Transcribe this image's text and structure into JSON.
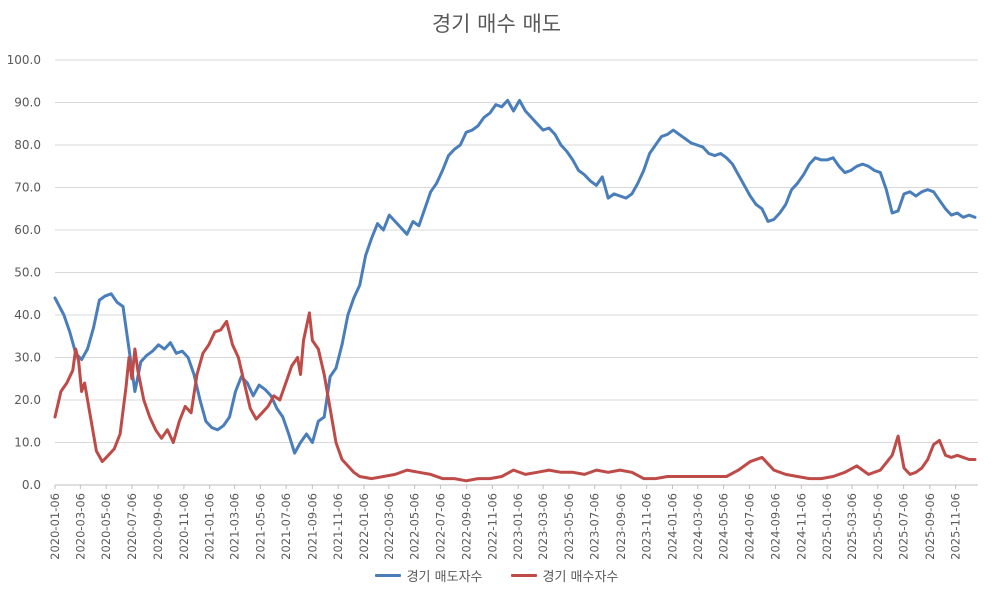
{
  "chart_data": {
    "type": "line",
    "title": "경기 매수 매도",
    "ylim": [
      0,
      100
    ],
    "yticks": [
      "0.0",
      "10.0",
      "20.0",
      "30.0",
      "40.0",
      "50.0",
      "60.0",
      "70.0",
      "80.0",
      "90.0",
      "100.0"
    ],
    "grid": true,
    "legend_position": "bottom",
    "x_start": "2020-01-06",
    "x_end": "2025-12-29",
    "x_ticks": [
      "2020-01-06",
      "2020-03-06",
      "2020-05-06",
      "2020-07-06",
      "2020-09-06",
      "2020-11-06",
      "2021-01-06",
      "2021-03-06",
      "2021-05-06",
      "2021-07-06",
      "2021-09-06",
      "2021-11-06",
      "2022-01-06",
      "2022-03-06",
      "2022-05-06",
      "2022-07-06",
      "2022-09-06",
      "2022-11-06",
      "2023-01-06",
      "2023-03-06",
      "2023-05-06",
      "2023-07-06",
      "2023-09-06",
      "2023-11-06",
      "2024-01-06",
      "2024-03-06",
      "2024-05-06",
      "2024-07-06",
      "2024-09-06",
      "2024-11-06",
      "2025-01-06",
      "2025-03-06",
      "2025-05-06",
      "2025-07-06",
      "2025-09-06",
      "2025-11-06"
    ],
    "series": [
      {
        "name": "경기 매도자수",
        "color": "#4a7ebb",
        "points": [
          [
            "2020-01-06",
            44
          ],
          [
            "2020-01-27",
            40
          ],
          [
            "2020-02-10",
            36
          ],
          [
            "2020-02-24",
            31
          ],
          [
            "2020-03-09",
            29.5
          ],
          [
            "2020-03-23",
            32
          ],
          [
            "2020-04-06",
            37
          ],
          [
            "2020-04-20",
            43.5
          ],
          [
            "2020-05-04",
            44.5
          ],
          [
            "2020-05-18",
            45
          ],
          [
            "2020-06-01",
            43
          ],
          [
            "2020-06-15",
            42
          ],
          [
            "2020-06-29",
            32
          ],
          [
            "2020-07-13",
            22
          ],
          [
            "2020-07-27",
            29
          ],
          [
            "2020-08-10",
            30.5
          ],
          [
            "2020-08-24",
            31.5
          ],
          [
            "2020-09-07",
            33
          ],
          [
            "2020-09-21",
            32
          ],
          [
            "2020-10-05",
            33.5
          ],
          [
            "2020-10-19",
            31
          ],
          [
            "2020-11-02",
            31.5
          ],
          [
            "2020-11-16",
            30
          ],
          [
            "2020-11-30",
            26
          ],
          [
            "2020-12-14",
            20
          ],
          [
            "2020-12-28",
            15
          ],
          [
            "2021-01-11",
            13.5
          ],
          [
            "2021-01-25",
            13
          ],
          [
            "2021-02-08",
            14
          ],
          [
            "2021-02-22",
            16
          ],
          [
            "2021-03-08",
            22
          ],
          [
            "2021-03-22",
            25.5
          ],
          [
            "2021-04-05",
            24
          ],
          [
            "2021-04-19",
            21
          ],
          [
            "2021-05-03",
            23.5
          ],
          [
            "2021-05-17",
            22.5
          ],
          [
            "2021-05-31",
            21
          ],
          [
            "2021-06-14",
            18
          ],
          [
            "2021-06-28",
            16
          ],
          [
            "2021-07-12",
            12
          ],
          [
            "2021-07-26",
            7.5
          ],
          [
            "2021-08-09",
            10
          ],
          [
            "2021-08-23",
            12
          ],
          [
            "2021-09-06",
            10
          ],
          [
            "2021-09-20",
            15
          ],
          [
            "2021-10-04",
            16
          ],
          [
            "2021-10-18",
            25.5
          ],
          [
            "2021-11-01",
            27.5
          ],
          [
            "2021-11-15",
            33
          ],
          [
            "2021-11-29",
            40
          ],
          [
            "2021-12-13",
            44
          ],
          [
            "2021-12-27",
            47
          ],
          [
            "2022-01-10",
            54
          ],
          [
            "2022-01-24",
            58
          ],
          [
            "2022-02-07",
            61.5
          ],
          [
            "2022-02-21",
            60
          ],
          [
            "2022-03-07",
            63.5
          ],
          [
            "2022-03-21",
            62
          ],
          [
            "2022-04-04",
            60.5
          ],
          [
            "2022-04-18",
            59
          ],
          [
            "2022-05-02",
            62
          ],
          [
            "2022-05-16",
            61
          ],
          [
            "2022-05-30",
            65
          ],
          [
            "2022-06-13",
            69
          ],
          [
            "2022-06-27",
            71
          ],
          [
            "2022-07-11",
            74
          ],
          [
            "2022-07-25",
            77.5
          ],
          [
            "2022-08-08",
            79
          ],
          [
            "2022-08-22",
            80
          ],
          [
            "2022-09-05",
            83
          ],
          [
            "2022-09-19",
            83.5
          ],
          [
            "2022-10-03",
            84.5
          ],
          [
            "2022-10-17",
            86.5
          ],
          [
            "2022-10-31",
            87.5
          ],
          [
            "2022-11-14",
            89.5
          ],
          [
            "2022-11-28",
            89
          ],
          [
            "2022-12-12",
            90.5
          ],
          [
            "2022-12-26",
            88
          ],
          [
            "2023-01-09",
            90.5
          ],
          [
            "2023-01-23",
            88
          ],
          [
            "2023-02-06",
            86.5
          ],
          [
            "2023-02-20",
            85
          ],
          [
            "2023-03-06",
            83.5
          ],
          [
            "2023-03-20",
            84
          ],
          [
            "2023-04-03",
            82.5
          ],
          [
            "2023-04-17",
            80
          ],
          [
            "2023-05-01",
            78.5
          ],
          [
            "2023-05-15",
            76.5
          ],
          [
            "2023-05-29",
            74
          ],
          [
            "2023-06-12",
            73
          ],
          [
            "2023-06-26",
            71.5
          ],
          [
            "2023-07-10",
            70.5
          ],
          [
            "2023-07-24",
            72.5
          ],
          [
            "2023-08-07",
            67.5
          ],
          [
            "2023-08-21",
            68.5
          ],
          [
            "2023-09-04",
            68
          ],
          [
            "2023-09-18",
            67.5
          ],
          [
            "2023-10-02",
            68.5
          ],
          [
            "2023-10-16",
            71
          ],
          [
            "2023-10-30",
            74
          ],
          [
            "2023-11-13",
            78
          ],
          [
            "2023-11-27",
            80
          ],
          [
            "2023-12-11",
            82
          ],
          [
            "2023-12-25",
            82.5
          ],
          [
            "2024-01-08",
            83.5
          ],
          [
            "2024-01-22",
            82.5
          ],
          [
            "2024-02-05",
            81.5
          ],
          [
            "2024-02-19",
            80.5
          ],
          [
            "2024-03-04",
            80
          ],
          [
            "2024-03-18",
            79.5
          ],
          [
            "2024-04-01",
            78
          ],
          [
            "2024-04-15",
            77.5
          ],
          [
            "2024-04-29",
            78
          ],
          [
            "2024-05-13",
            77
          ],
          [
            "2024-05-27",
            75.5
          ],
          [
            "2024-06-10",
            73
          ],
          [
            "2024-06-24",
            70.5
          ],
          [
            "2024-07-08",
            68
          ],
          [
            "2024-07-22",
            66
          ],
          [
            "2024-08-05",
            65
          ],
          [
            "2024-08-19",
            62
          ],
          [
            "2024-09-02",
            62.5
          ],
          [
            "2024-09-16",
            64
          ],
          [
            "2024-09-30",
            66
          ],
          [
            "2024-10-14",
            69.5
          ],
          [
            "2024-10-28",
            71
          ],
          [
            "2024-11-11",
            73
          ],
          [
            "2024-11-25",
            75.5
          ],
          [
            "2024-12-09",
            77
          ],
          [
            "2024-12-23",
            76.5
          ],
          [
            "2025-01-06",
            76.5
          ],
          [
            "2025-01-20",
            77
          ],
          [
            "2025-02-03",
            75
          ],
          [
            "2025-02-17",
            73.5
          ],
          [
            "2025-03-03",
            74
          ],
          [
            "2025-03-17",
            75
          ],
          [
            "2025-03-31",
            75.5
          ],
          [
            "2025-04-14",
            75
          ],
          [
            "2025-04-28",
            74
          ],
          [
            "2025-05-12",
            73.5
          ],
          [
            "2025-05-26",
            69.5
          ],
          [
            "2025-06-09",
            64
          ],
          [
            "2025-06-23",
            64.5
          ],
          [
            "2025-07-07",
            68.5
          ],
          [
            "2025-07-21",
            69
          ],
          [
            "2025-08-04",
            68
          ],
          [
            "2025-08-18",
            69
          ],
          [
            "2025-09-01",
            69.5
          ],
          [
            "2025-09-15",
            69
          ],
          [
            "2025-09-29",
            67
          ],
          [
            "2025-10-13",
            65
          ],
          [
            "2025-10-27",
            63.5
          ],
          [
            "2025-11-10",
            64
          ],
          [
            "2025-11-24",
            63
          ],
          [
            "2025-12-08",
            63.5
          ],
          [
            "2025-12-22",
            63
          ]
        ]
      },
      {
        "name": "경기 매수자수",
        "color": "#be4b48",
        "points": [
          [
            "2020-01-06",
            16
          ],
          [
            "2020-01-20",
            22
          ],
          [
            "2020-02-03",
            24
          ],
          [
            "2020-02-17",
            27
          ],
          [
            "2020-02-24",
            32
          ],
          [
            "2020-03-02",
            29
          ],
          [
            "2020-03-09",
            22
          ],
          [
            "2020-03-16",
            24
          ],
          [
            "2020-03-30",
            16
          ],
          [
            "2020-04-13",
            8
          ],
          [
            "2020-04-27",
            5.5
          ],
          [
            "2020-05-11",
            7
          ],
          [
            "2020-05-25",
            8.5
          ],
          [
            "2020-06-08",
            12
          ],
          [
            "2020-06-22",
            23
          ],
          [
            "2020-06-29",
            30
          ],
          [
            "2020-07-06",
            25
          ],
          [
            "2020-07-13",
            32
          ],
          [
            "2020-07-20",
            27
          ],
          [
            "2020-08-03",
            20
          ],
          [
            "2020-08-17",
            16
          ],
          [
            "2020-08-31",
            13
          ],
          [
            "2020-09-14",
            11
          ],
          [
            "2020-09-28",
            13
          ],
          [
            "2020-10-12",
            10
          ],
          [
            "2020-10-26",
            15
          ],
          [
            "2020-11-09",
            18.5
          ],
          [
            "2020-11-23",
            17
          ],
          [
            "2020-12-07",
            26
          ],
          [
            "2020-12-21",
            31
          ],
          [
            "2021-01-04",
            33
          ],
          [
            "2021-01-18",
            36
          ],
          [
            "2021-02-01",
            36.5
          ],
          [
            "2021-02-15",
            38.5
          ],
          [
            "2021-03-01",
            33
          ],
          [
            "2021-03-15",
            30
          ],
          [
            "2021-03-29",
            24
          ],
          [
            "2021-04-12",
            18
          ],
          [
            "2021-04-26",
            15.5
          ],
          [
            "2021-05-10",
            17
          ],
          [
            "2021-05-24",
            18.5
          ],
          [
            "2021-06-07",
            21
          ],
          [
            "2021-06-21",
            20
          ],
          [
            "2021-07-05",
            24
          ],
          [
            "2021-07-19",
            28
          ],
          [
            "2021-08-02",
            30
          ],
          [
            "2021-08-09",
            26
          ],
          [
            "2021-08-16",
            34
          ],
          [
            "2021-08-30",
            40.5
          ],
          [
            "2021-09-06",
            34
          ],
          [
            "2021-09-20",
            32
          ],
          [
            "2021-10-04",
            26
          ],
          [
            "2021-10-18",
            18
          ],
          [
            "2021-11-01",
            10
          ],
          [
            "2021-11-15",
            6
          ],
          [
            "2021-11-29",
            4.5
          ],
          [
            "2021-12-13",
            3
          ],
          [
            "2021-12-27",
            2
          ],
          [
            "2022-01-24",
            1.5
          ],
          [
            "2022-02-21",
            2
          ],
          [
            "2022-03-21",
            2.5
          ],
          [
            "2022-04-18",
            3.5
          ],
          [
            "2022-05-16",
            3
          ],
          [
            "2022-06-13",
            2.5
          ],
          [
            "2022-07-11",
            1.5
          ],
          [
            "2022-08-08",
            1.5
          ],
          [
            "2022-09-05",
            1
          ],
          [
            "2022-10-03",
            1.5
          ],
          [
            "2022-10-31",
            1.5
          ],
          [
            "2022-11-28",
            2
          ],
          [
            "2022-12-26",
            3.5
          ],
          [
            "2023-01-23",
            2.5
          ],
          [
            "2023-02-20",
            3
          ],
          [
            "2023-03-20",
            3.5
          ],
          [
            "2023-04-17",
            3
          ],
          [
            "2023-05-15",
            3
          ],
          [
            "2023-06-12",
            2.5
          ],
          [
            "2023-07-10",
            3.5
          ],
          [
            "2023-08-07",
            3
          ],
          [
            "2023-09-04",
            3.5
          ],
          [
            "2023-10-02",
            3
          ],
          [
            "2023-10-30",
            1.5
          ],
          [
            "2023-11-27",
            1.5
          ],
          [
            "2023-12-25",
            2
          ],
          [
            "2024-01-22",
            2
          ],
          [
            "2024-02-19",
            2
          ],
          [
            "2024-03-18",
            2
          ],
          [
            "2024-04-15",
            2
          ],
          [
            "2024-05-13",
            2
          ],
          [
            "2024-06-10",
            3.5
          ],
          [
            "2024-07-08",
            5.5
          ],
          [
            "2024-08-05",
            6.5
          ],
          [
            "2024-08-19",
            5
          ],
          [
            "2024-09-02",
            3.5
          ],
          [
            "2024-09-30",
            2.5
          ],
          [
            "2024-10-28",
            2
          ],
          [
            "2024-11-25",
            1.5
          ],
          [
            "2024-12-23",
            1.5
          ],
          [
            "2025-01-20",
            2
          ],
          [
            "2025-02-17",
            3
          ],
          [
            "2025-03-17",
            4.5
          ],
          [
            "2025-04-14",
            2.5
          ],
          [
            "2025-05-12",
            3.5
          ],
          [
            "2025-06-09",
            7
          ],
          [
            "2025-06-23",
            11.5
          ],
          [
            "2025-07-07",
            4
          ],
          [
            "2025-07-21",
            2.5
          ],
          [
            "2025-08-04",
            3
          ],
          [
            "2025-08-18",
            4
          ],
          [
            "2025-09-01",
            6
          ],
          [
            "2025-09-15",
            9.5
          ],
          [
            "2025-09-29",
            10.5
          ],
          [
            "2025-10-13",
            7
          ],
          [
            "2025-10-27",
            6.5
          ],
          [
            "2025-11-10",
            7
          ],
          [
            "2025-11-24",
            6.5
          ],
          [
            "2025-12-08",
            6
          ],
          [
            "2025-12-22",
            6
          ]
        ]
      }
    ]
  }
}
